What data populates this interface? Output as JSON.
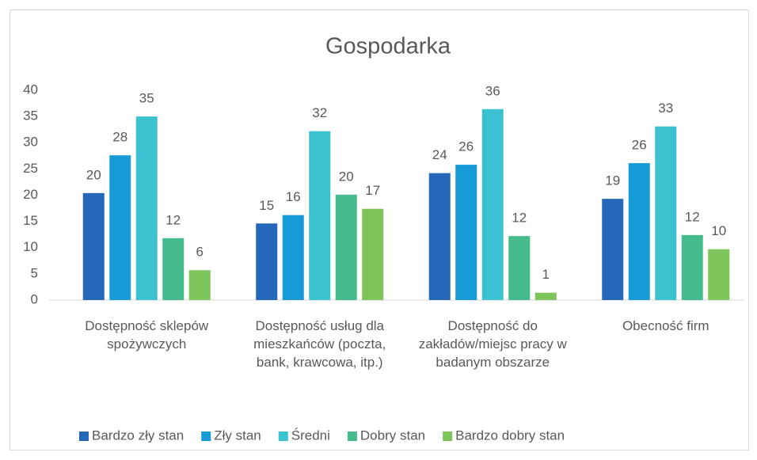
{
  "chart_data": {
    "type": "bar",
    "title": "Gospodarka",
    "categories": [
      "Dostępność sklepów spożywczych",
      "Dostępność usług dla mieszkańców (poczta, bank, krawcowa, itp.)",
      "Dostępność do zakładów/miejsc pracy w badanym obszarze",
      "Obecność firm"
    ],
    "series": [
      {
        "name": "Bardzo zły stan",
        "color": "#2567b8",
        "values": [
          20.4,
          14.6,
          24.2,
          19.3
        ],
        "value_labels": [
          "20",
          "15",
          "24",
          "19"
        ]
      },
      {
        "name": "Zły stan",
        "color": "#179bd7",
        "values": [
          27.6,
          16.2,
          25.8,
          26.1
        ],
        "value_labels": [
          "28",
          "16",
          "26",
          "26"
        ]
      },
      {
        "name": "Średni",
        "color": "#3cc1d0",
        "values": [
          35.0,
          32.2,
          36.4,
          33.1
        ],
        "value_labels": [
          "35",
          "32",
          "36",
          "33"
        ]
      },
      {
        "name": "Dobry stan",
        "color": "#45ba8c",
        "values": [
          11.8,
          20.1,
          12.2,
          12.4
        ],
        "value_labels": [
          "12",
          "20",
          "12",
          "12"
        ]
      },
      {
        "name": "Bardzo dobry stan",
        "color": "#7dc45b",
        "values": [
          5.7,
          17.4,
          1.4,
          9.7
        ],
        "value_labels": [
          "6",
          "17",
          "1",
          "10"
        ]
      }
    ],
    "ylim": [
      0,
      40
    ],
    "yticks": [
      0,
      5,
      10,
      15,
      20,
      25,
      30,
      35,
      40
    ],
    "grid": false,
    "legend": "bottom"
  }
}
